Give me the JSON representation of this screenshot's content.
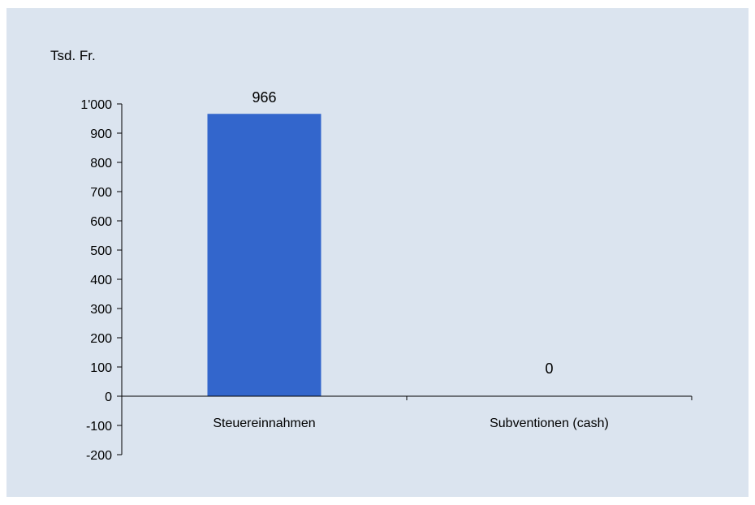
{
  "chart_data": {
    "type": "bar",
    "unit_label": "Tsd. Fr.",
    "categories": [
      "Steuereinnahmen",
      "Subventionen (cash)"
    ],
    "values": [
      966,
      0
    ],
    "data_labels": [
      "966",
      "0"
    ],
    "ylim": [
      -200,
      1000
    ],
    "yticks": [
      -200,
      -100,
      0,
      100,
      200,
      300,
      400,
      500,
      600,
      700,
      800,
      900,
      1000
    ],
    "ytick_labels": [
      "-200",
      "-100",
      "0",
      "100",
      "200",
      "300",
      "400",
      "500",
      "600",
      "700",
      "800",
      "900",
      "1'000"
    ],
    "grid": false,
    "legend": "none",
    "colors": {
      "bar": "#3366cc",
      "background": "#dbe4ef",
      "axis": "#000000"
    }
  }
}
